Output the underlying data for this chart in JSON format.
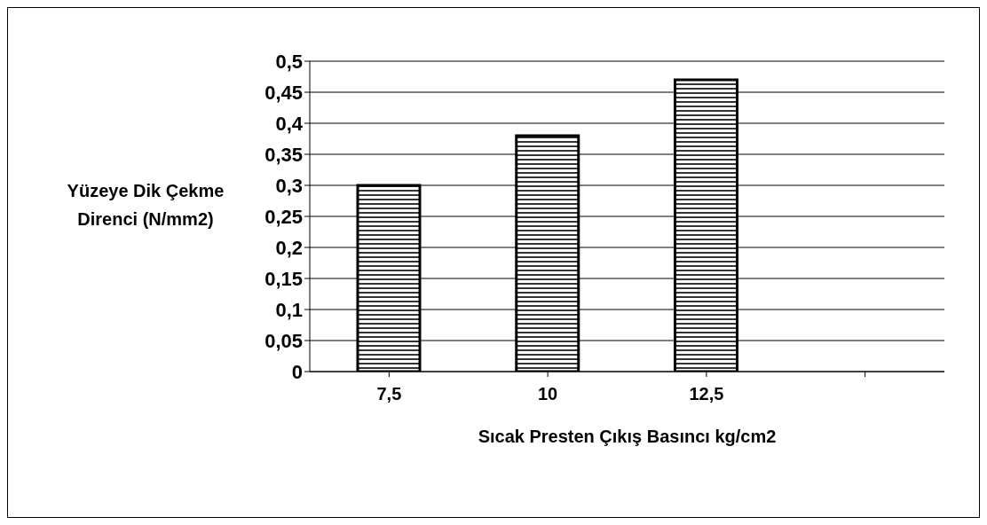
{
  "chart_data": {
    "type": "bar",
    "categories": [
      "7,5",
      "10",
      "12,5",
      null
    ],
    "values": [
      0.3,
      0.38,
      0.47,
      null
    ],
    "color": "#000000",
    "xlabel": "Sıcak Presten Çıkış Basıncı kg/cm2",
    "ylabel": "Yüzeye Dik Çekme Direnci (N/mm2)",
    "ylim": [
      0,
      0.5
    ],
    "yticks": [
      0,
      {
        "value": 0.05,
        "label": "0,05"
      },
      {
        "value": 0.1,
        "label": "0,1"
      },
      {
        "value": 0.15,
        "label": "0,15"
      },
      {
        "value": 0.2,
        "label": "0,2"
      },
      {
        "value": 0.25,
        "label": "0,25"
      },
      {
        "value": 0.3,
        "label": "0,3"
      },
      {
        "value": 0.35,
        "label": "0,35"
      },
      {
        "value": 0.4,
        "label": "0,4"
      },
      {
        "value": 0.45,
        "label": "0,45"
      },
      {
        "value": 0.5,
        "label": "0,5"
      }
    ],
    "grid": "y",
    "legend": false
  }
}
